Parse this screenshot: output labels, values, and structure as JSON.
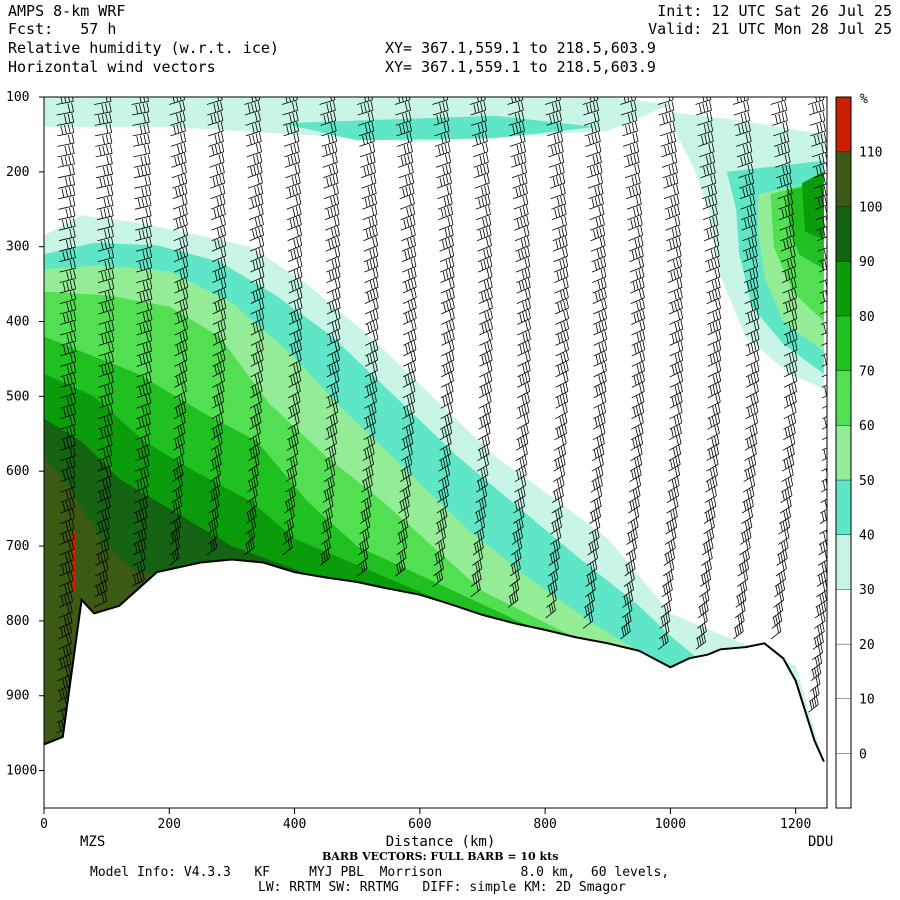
{
  "header": {
    "model": "AMPS 8-km WRF",
    "forecast": "Fcst:   57 h",
    "field1": "Relative humidity (w.r.t. ice)",
    "field2": "Horizontal wind vectors",
    "init": "Init: 12 UTC Sat 26 Jul 25",
    "valid": "Valid: 21 UTC Mon 28 Jul 25",
    "xy1": "XY= 367.1,559.1 to 218.5,603.9",
    "xy2": "XY= 367.1,559.1 to 218.5,603.9"
  },
  "footer": {
    "barb_note": "BARB VECTORS:  FULL BARB = 10 kts",
    "line1": "Model Info: V4.3.3   KF     MYJ PBL  Morrison          8.0 km,  60 levels,",
    "line2": "LW: RRTM SW: RRTMG   DIFF: simple KM: 2D Smagor"
  },
  "chart_data": {
    "type": "heatmap",
    "xlabel": "Distance (km)",
    "ylabel": "",
    "xlim": [
      0,
      1250
    ],
    "ylim": [
      1050,
      100
    ],
    "x_ticks": [
      0,
      200,
      400,
      600,
      800,
      1000,
      1200
    ],
    "y_ticks": [
      100,
      200,
      300,
      400,
      500,
      600,
      700,
      800,
      900,
      1000
    ],
    "left_station": "MZS",
    "right_station": "DDU",
    "colorbar": {
      "unit": "%",
      "levels": [
        0,
        10,
        20,
        30,
        40,
        50,
        60,
        70,
        80,
        90,
        100,
        110
      ],
      "colors": [
        "#ffffff",
        "#ffffff",
        "#ffffff",
        "#ffffff",
        "#c8f5e6",
        "#5ee6c6",
        "#94ec96",
        "#52e052",
        "#20c020",
        "#0a9c0a",
        "#146414",
        "#3c5a14",
        "#c82000"
      ]
    },
    "terrain_profile": [
      [
        0,
        965
      ],
      [
        30,
        955
      ],
      [
        60,
        772
      ],
      [
        80,
        790
      ],
      [
        120,
        780
      ],
      [
        180,
        735
      ],
      [
        250,
        722
      ],
      [
        300,
        718
      ],
      [
        350,
        722
      ],
      [
        400,
        735
      ],
      [
        450,
        742
      ],
      [
        500,
        748
      ],
      [
        550,
        757
      ],
      [
        600,
        765
      ],
      [
        650,
        778
      ],
      [
        700,
        792
      ],
      [
        750,
        803
      ],
      [
        800,
        812
      ],
      [
        850,
        822
      ],
      [
        900,
        830
      ],
      [
        950,
        840
      ],
      [
        1000,
        862
      ],
      [
        1030,
        850
      ],
      [
        1060,
        845
      ],
      [
        1080,
        838
      ],
      [
        1120,
        835
      ],
      [
        1150,
        830
      ],
      [
        1180,
        850
      ],
      [
        1200,
        880
      ],
      [
        1230,
        960
      ],
      [
        1245,
        988
      ]
    ],
    "rh_regions": [
      {
        "rh": 35,
        "boundary": [
          [
            0,
            285
          ],
          [
            60,
            258
          ],
          [
            150,
            268
          ],
          [
            250,
            285
          ],
          [
            330,
            300
          ],
          [
            420,
            350
          ],
          [
            520,
            420
          ],
          [
            620,
            500
          ],
          [
            720,
            580
          ],
          [
            820,
            640
          ],
          [
            900,
            690
          ],
          [
            1000,
            790
          ],
          [
            1200,
            860
          ],
          [
            1245,
            990
          ],
          [
            0,
            990
          ]
        ]
      },
      {
        "rh": 45,
        "boundary": [
          [
            0,
            310
          ],
          [
            80,
            295
          ],
          [
            180,
            298
          ],
          [
            280,
            320
          ],
          [
            370,
            365
          ],
          [
            460,
            420
          ],
          [
            560,
            500
          ],
          [
            660,
            580
          ],
          [
            760,
            650
          ],
          [
            860,
            720
          ],
          [
            950,
            780
          ],
          [
            1000,
            820
          ],
          [
            1245,
            990
          ],
          [
            0,
            990
          ]
        ]
      },
      {
        "rh": 55,
        "boundary": [
          [
            0,
            330
          ],
          [
            90,
            325
          ],
          [
            200,
            333
          ],
          [
            300,
            375
          ],
          [
            390,
            440
          ],
          [
            480,
            520
          ],
          [
            580,
            600
          ],
          [
            680,
            680
          ],
          [
            770,
            740
          ],
          [
            870,
            800
          ],
          [
            1245,
            990
          ],
          [
            0,
            990
          ]
        ]
      },
      {
        "rh": 65,
        "boundary": [
          [
            0,
            360
          ],
          [
            100,
            365
          ],
          [
            200,
            380
          ],
          [
            280,
            420
          ],
          [
            360,
            510
          ],
          [
            450,
            580
          ],
          [
            540,
            640
          ],
          [
            620,
            700
          ],
          [
            700,
            760
          ],
          [
            1245,
            990
          ],
          [
            0,
            990
          ]
        ]
      },
      {
        "rh": 75,
        "boundary": [
          [
            0,
            420
          ],
          [
            60,
            440
          ],
          [
            150,
            470
          ],
          [
            250,
            520
          ],
          [
            340,
            560
          ],
          [
            420,
            640
          ],
          [
            500,
            700
          ],
          [
            1245,
            990
          ],
          [
            0,
            990
          ]
        ]
      },
      {
        "rh": 85,
        "boundary": [
          [
            0,
            470
          ],
          [
            80,
            500
          ],
          [
            160,
            560
          ],
          [
            240,
            600
          ],
          [
            330,
            640
          ],
          [
            400,
            690
          ],
          [
            1245,
            990
          ],
          [
            0,
            990
          ]
        ]
      },
      {
        "rh": 95,
        "boundary": [
          [
            0,
            530
          ],
          [
            60,
            560
          ],
          [
            120,
            610
          ],
          [
            180,
            640
          ],
          [
            240,
            670
          ],
          [
            300,
            700
          ],
          [
            1245,
            990
          ],
          [
            0,
            990
          ]
        ]
      },
      {
        "rh": 105,
        "boundary": [
          [
            0,
            580
          ],
          [
            40,
            620
          ],
          [
            90,
            690
          ],
          [
            140,
            730
          ],
          [
            1245,
            990
          ],
          [
            0,
            990
          ]
        ]
      },
      {
        "rh": 112,
        "boundary": [
          [
            45,
            680
          ],
          [
            50,
            680
          ],
          [
            50,
            760
          ],
          [
            45,
            760
          ]
        ]
      },
      {
        "rh": 35,
        "boundary": [
          [
            1000,
            120
          ],
          [
            1100,
            130
          ],
          [
            1245,
            150
          ],
          [
            1245,
            490
          ],
          [
            1190,
            470
          ],
          [
            1120,
            420
          ],
          [
            1080,
            340
          ],
          [
            1060,
            250
          ],
          [
            1040,
            200
          ],
          [
            1010,
            150
          ]
        ]
      },
      {
        "rh": 45,
        "boundary": [
          [
            1090,
            200
          ],
          [
            1245,
            185
          ],
          [
            1245,
            470
          ],
          [
            1180,
            430
          ],
          [
            1130,
            380
          ],
          [
            1110,
            310
          ],
          [
            1105,
            250
          ]
        ]
      },
      {
        "rh": 55,
        "boundary": [
          [
            1140,
            230
          ],
          [
            1245,
            210
          ],
          [
            1245,
            440
          ],
          [
            1180,
            400
          ],
          [
            1150,
            340
          ],
          [
            1140,
            280
          ]
        ]
      },
      {
        "rh": 65,
        "boundary": [
          [
            1160,
            230
          ],
          [
            1245,
            210
          ],
          [
            1245,
            400
          ],
          [
            1195,
            360
          ],
          [
            1165,
            300
          ]
        ]
      },
      {
        "rh": 75,
        "boundary": [
          [
            1185,
            225
          ],
          [
            1245,
            215
          ],
          [
            1245,
            330
          ],
          [
            1205,
            310
          ],
          [
            1190,
            270
          ]
        ]
      },
      {
        "rh": 85,
        "boundary": [
          [
            1210,
            215
          ],
          [
            1245,
            200
          ],
          [
            1245,
            290
          ],
          [
            1215,
            280
          ]
        ]
      },
      {
        "rh": 35,
        "boundary": [
          [
            0,
            100
          ],
          [
            200,
            100
          ],
          [
            450,
            100
          ],
          [
            700,
            100
          ],
          [
            900,
            100
          ],
          [
            1000,
            110
          ],
          [
            900,
            145
          ],
          [
            600,
            160
          ],
          [
            400,
            150
          ],
          [
            200,
            140
          ],
          [
            0,
            140
          ]
        ]
      },
      {
        "rh": 45,
        "boundary": [
          [
            380,
            135
          ],
          [
            720,
            125
          ],
          [
            880,
            140
          ],
          [
            720,
            155
          ],
          [
            500,
            158
          ]
        ]
      }
    ],
    "wind_barb_columns_km": [
      20,
      80,
      140,
      200,
      260,
      320,
      380,
      440,
      500,
      560,
      620,
      680,
      740,
      800,
      860,
      920,
      980,
      1040,
      1100,
      1160,
      1220
    ]
  }
}
